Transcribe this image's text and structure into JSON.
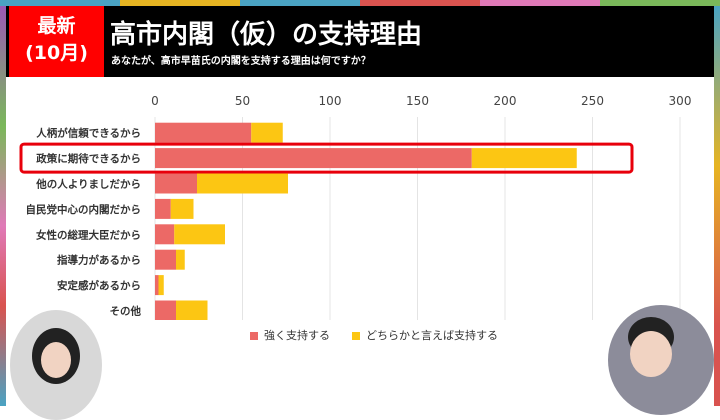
{
  "header": {
    "badge_line1": "最新",
    "badge_line2": "(10月)",
    "title": "高市内閣（仮）の支持理由",
    "subtitle": "あなたが、高市早苗氏の内閣を支持する理由は何ですか？"
  },
  "colors": {
    "strong": "#ec6966",
    "somewhat": "#fcc613",
    "highlight": "#e8000b"
  },
  "chart_data": {
    "type": "bar",
    "stacked": true,
    "orientation": "horizontal",
    "categories": [
      "人柄が信頼できるから",
      "政策に期待できるから",
      "他の人よりましだから",
      "自民党中心の内閣だから",
      "女性の総理大臣だから",
      "指導力があるから",
      "安定感があるから",
      "その他"
    ],
    "series": [
      {
        "name": "強く支持する",
        "values": [
          55,
          181,
          24,
          9,
          11,
          12,
          2,
          12
        ]
      },
      {
        "name": "どちらかと言えば支持する",
        "values": [
          18,
          60,
          52,
          13,
          29,
          5,
          3,
          18
        ]
      }
    ],
    "xlim": [
      0,
      300
    ],
    "xticks": [
      0,
      50,
      100,
      150,
      200,
      250,
      300
    ],
    "highlighted_category": "政策に期待できるから",
    "legend_position": "bottom",
    "grid": true
  }
}
